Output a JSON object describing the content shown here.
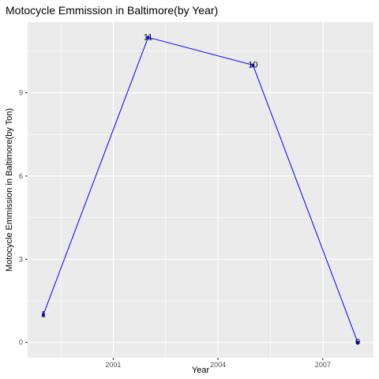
{
  "chart_data": {
    "type": "line",
    "title": "Motocycle Emmission in Baltimore(by Year)",
    "xlabel": "Year",
    "ylabel": "Motocycle Emmission in Baltimore(by Ton)",
    "x": [
      1999,
      2002,
      2005,
      2008
    ],
    "y": [
      1,
      11,
      10,
      0
    ],
    "data_labels": [
      "1",
      "11",
      "10",
      "0"
    ],
    "xticks": [
      2001,
      2004,
      2007
    ],
    "xtick_labels": [
      "2001",
      "2004",
      "2007"
    ],
    "yticks": [
      0,
      3,
      6,
      9
    ],
    "ytick_labels": [
      "0",
      "3",
      "6",
      "9"
    ],
    "xlim": [
      1998.55,
      2008.45
    ],
    "ylim": [
      -0.55,
      11.55
    ],
    "grid": true,
    "legend": "none",
    "colors": {
      "line": "#0000ff",
      "point": "#0000ff",
      "panel_background": "#ebebeb",
      "grid": "#ffffff"
    }
  }
}
